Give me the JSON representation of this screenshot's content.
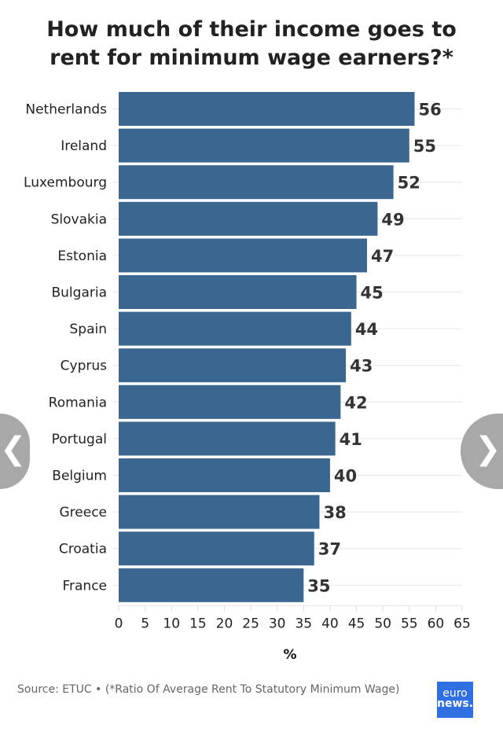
{
  "chart_data": {
    "type": "bar",
    "title": "How much of their income goes to rent for minimum wage earners?*",
    "categories": [
      "Netherlands",
      "Ireland",
      "Luxembourg",
      "Slovakia",
      "Estonia",
      "Bulgaria",
      "Spain",
      "Cyprus",
      "Romania",
      "Portugal",
      "Belgium",
      "Greece",
      "Croatia",
      "France"
    ],
    "values": [
      56,
      55,
      52,
      49,
      47,
      45,
      44,
      43,
      42,
      41,
      40,
      38,
      37,
      35
    ],
    "xlabel": "%",
    "xlim": [
      0,
      65
    ],
    "xticks": [
      0,
      5,
      10,
      15,
      20,
      25,
      30,
      35,
      40,
      45,
      50,
      55,
      60,
      65
    ],
    "orientation": "horizontal",
    "grid": true,
    "bar_color": "#3a6690"
  },
  "source": "Source: ETUC • (*Ratio Of Average Rent To Statutory Minimum Wage)",
  "logo": {
    "line1": "euro",
    "line2": "news."
  },
  "nav": {
    "prev_icon": "chevron-left-icon",
    "next_icon": "chevron-right-icon"
  }
}
